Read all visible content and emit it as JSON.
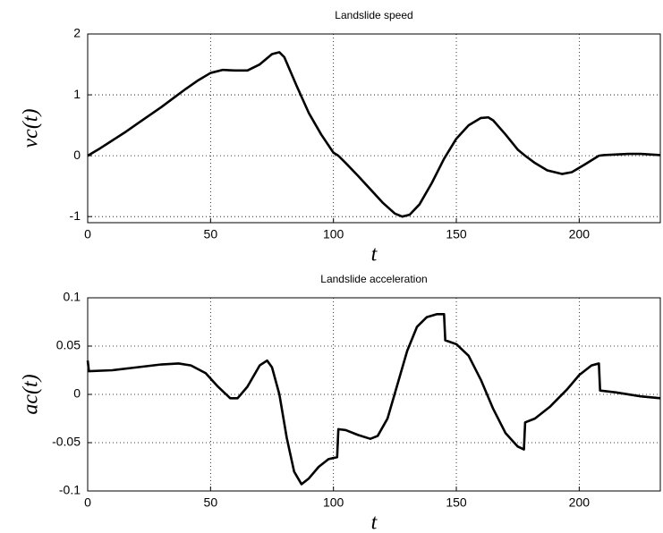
{
  "chart_data": [
    {
      "type": "line",
      "title": "Landslide speed",
      "xlabel": "t",
      "ylabel": "vc(t)",
      "x": [
        0,
        5,
        10,
        15,
        20,
        25,
        30,
        35,
        40,
        45,
        50,
        55,
        60,
        65,
        70,
        75,
        78,
        80,
        85,
        90,
        95,
        100,
        102,
        105,
        110,
        115,
        120,
        125,
        128,
        131,
        135,
        140,
        145,
        150,
        155,
        160,
        163,
        165,
        170,
        175,
        178,
        182,
        187,
        193,
        197,
        202,
        208,
        210,
        220,
        225,
        233
      ],
      "series": [
        {
          "name": "vc",
          "color": "#000000",
          "values": [
            0,
            0.12,
            0.25,
            0.38,
            0.52,
            0.66,
            0.8,
            0.95,
            1.1,
            1.24,
            1.36,
            1.41,
            1.4,
            1.4,
            1.5,
            1.67,
            1.7,
            1.62,
            1.15,
            0.7,
            0.35,
            0.05,
            0,
            -0.12,
            -0.33,
            -0.55,
            -0.77,
            -0.95,
            -1.0,
            -0.97,
            -0.8,
            -0.45,
            -0.05,
            0.28,
            0.5,
            0.62,
            0.63,
            0.58,
            0.35,
            0.1,
            0,
            -0.12,
            -0.24,
            -0.3,
            -0.27,
            -0.15,
            0,
            0.01,
            0.03,
            0.03,
            0.01
          ]
        }
      ],
      "xlim": [
        0,
        233
      ],
      "xticks": [
        0,
        50,
        100,
        150,
        200
      ],
      "ylim": [
        -1.1,
        2
      ],
      "yticks": [
        -1,
        0,
        1,
        2
      ],
      "grid": true
    },
    {
      "type": "line",
      "title": "Landslide acceleration",
      "xlabel": "t",
      "ylabel": "ac(t)",
      "x": [
        0,
        0.5,
        10,
        20,
        30,
        37,
        42,
        48,
        53,
        58,
        61,
        65,
        70,
        73,
        75,
        78,
        81,
        84,
        87,
        90,
        94,
        98,
        101.5,
        102,
        105,
        110,
        115,
        118,
        122,
        126,
        130,
        134,
        138,
        142,
        145,
        145.5,
        150,
        155,
        160,
        165,
        170,
        175,
        177.5,
        178,
        182,
        188,
        195,
        200,
        205,
        208,
        208.5,
        215,
        225,
        233
      ],
      "series": [
        {
          "name": "ac",
          "color": "#000000",
          "values": [
            0.035,
            0.024,
            0.025,
            0.028,
            0.031,
            0.032,
            0.03,
            0.022,
            0.008,
            -0.004,
            -0.004,
            0.008,
            0.03,
            0.035,
            0.028,
            0,
            -0.045,
            -0.08,
            -0.093,
            -0.087,
            -0.075,
            -0.067,
            -0.065,
            -0.036,
            -0.037,
            -0.042,
            -0.046,
            -0.043,
            -0.025,
            0.01,
            0.045,
            0.07,
            0.08,
            0.083,
            0.083,
            0.056,
            0.052,
            0.04,
            0.015,
            -0.015,
            -0.04,
            -0.054,
            -0.057,
            -0.029,
            -0.025,
            -0.013,
            0.005,
            0.02,
            0.03,
            0.032,
            0.004,
            0.002,
            -0.002,
            -0.004
          ]
        }
      ],
      "xlim": [
        0,
        233
      ],
      "xticks": [
        0,
        50,
        100,
        150,
        200
      ],
      "ylim": [
        -0.1,
        0.1
      ],
      "yticks": [
        -0.1,
        -0.05,
        0,
        0.05,
        0.1
      ],
      "grid": true
    }
  ]
}
